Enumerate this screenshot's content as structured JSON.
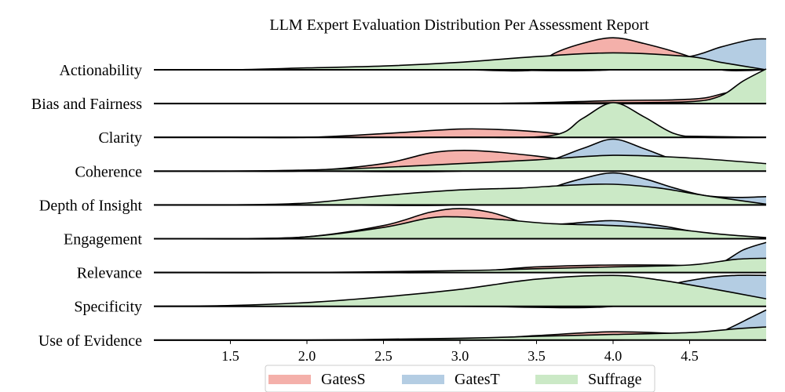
{
  "chart_data": {
    "type": "area",
    "title": "LLM Expert Evaluation Distribution Per Assessment Report",
    "xlabel": "",
    "ylabel": "",
    "xlim": [
      1.0,
      5.0
    ],
    "x_ticks": [
      1.5,
      2.0,
      2.5,
      3.0,
      3.5,
      4.0,
      4.5
    ],
    "x_tick_labels": [
      "1.5",
      "2.0",
      "2.5",
      "3.0",
      "3.5",
      "4.0",
      "4.5"
    ],
    "categories": [
      "Actionability",
      "Bias and Fairness",
      "Clarity",
      "Coherence",
      "Depth of Insight",
      "Engagement",
      "Relevance",
      "Specificity",
      "Use of Evidence"
    ],
    "legend_position": "bottom-center",
    "series": [
      {
        "name": "GatesS",
        "color": "#f4b0aa",
        "curves": [
          [
            [
              1.0,
              0.0
            ],
            [
              1.5,
              0.0
            ],
            [
              2.0,
              0.0
            ],
            [
              2.5,
              0.0
            ],
            [
              3.0,
              0.0
            ],
            [
              3.5,
              0.0
            ],
            [
              3.6,
              0.4
            ],
            [
              3.8,
              0.7
            ],
            [
              4.0,
              0.85
            ],
            [
              4.2,
              0.7
            ],
            [
              4.5,
              0.35
            ],
            [
              4.7,
              0.0
            ],
            [
              5.0,
              0.0
            ]
          ],
          [
            [
              1.0,
              0.0
            ],
            [
              2.0,
              0.0
            ],
            [
              3.0,
              0.0
            ],
            [
              3.5,
              0.02
            ],
            [
              4.0,
              0.08
            ],
            [
              4.4,
              0.1
            ],
            [
              4.6,
              0.15
            ],
            [
              4.8,
              0.3
            ],
            [
              5.0,
              0.0
            ]
          ],
          [
            [
              1.0,
              0.0
            ],
            [
              1.5,
              0.0
            ],
            [
              2.0,
              0.0
            ],
            [
              2.5,
              0.1
            ],
            [
              3.0,
              0.22
            ],
            [
              3.3,
              0.2
            ],
            [
              3.5,
              0.15
            ],
            [
              3.7,
              0.08
            ],
            [
              4.0,
              0.05
            ],
            [
              4.5,
              0.03
            ],
            [
              5.0,
              0.0
            ]
          ],
          [
            [
              1.0,
              0.0
            ],
            [
              1.5,
              0.0
            ],
            [
              2.0,
              0.01
            ],
            [
              2.5,
              0.2
            ],
            [
              2.8,
              0.48
            ],
            [
              3.0,
              0.55
            ],
            [
              3.2,
              0.52
            ],
            [
              3.5,
              0.4
            ],
            [
              3.7,
              0.3
            ],
            [
              4.0,
              0.2
            ],
            [
              4.5,
              0.08
            ],
            [
              5.0,
              0.0
            ]
          ],
          [
            [
              1.0,
              0.0
            ],
            [
              2.0,
              0.0
            ],
            [
              3.0,
              0.0
            ],
            [
              3.5,
              0.0
            ],
            [
              4.0,
              0.0
            ],
            [
              5.0,
              0.0
            ]
          ],
          [
            [
              1.0,
              0.0
            ],
            [
              1.5,
              0.0
            ],
            [
              2.0,
              0.05
            ],
            [
              2.5,
              0.35
            ],
            [
              2.8,
              0.7
            ],
            [
              3.0,
              0.8
            ],
            [
              3.2,
              0.7
            ],
            [
              3.4,
              0.45
            ],
            [
              3.6,
              0.25
            ],
            [
              4.0,
              0.12
            ],
            [
              4.5,
              0.05
            ],
            [
              5.0,
              0.0
            ]
          ],
          [
            [
              1.0,
              0.0
            ],
            [
              2.0,
              0.0
            ],
            [
              3.0,
              0.02
            ],
            [
              3.5,
              0.15
            ],
            [
              4.0,
              0.2
            ],
            [
              4.5,
              0.18
            ],
            [
              4.8,
              0.05
            ],
            [
              5.0,
              0.0
            ]
          ],
          [
            [
              1.0,
              0.0
            ],
            [
              2.0,
              0.0
            ],
            [
              3.0,
              0.0
            ],
            [
              4.0,
              0.0
            ],
            [
              5.0,
              0.0
            ]
          ],
          [
            [
              1.0,
              0.0
            ],
            [
              2.0,
              0.0
            ],
            [
              3.0,
              0.02
            ],
            [
              3.5,
              0.12
            ],
            [
              4.0,
              0.22
            ],
            [
              4.5,
              0.15
            ],
            [
              4.7,
              0.05
            ],
            [
              5.0,
              0.0
            ]
          ]
        ]
      },
      {
        "name": "GatesT",
        "color": "#b4cde3",
        "curves": [
          [
            [
              1.0,
              0.0
            ],
            [
              2.0,
              0.0
            ],
            [
              3.0,
              0.0
            ],
            [
              4.0,
              0.0
            ],
            [
              4.5,
              0.35
            ],
            [
              4.7,
              0.6
            ],
            [
              4.9,
              0.8
            ],
            [
              5.0,
              0.82
            ]
          ],
          [
            [
              1.0,
              0.0
            ],
            [
              2.0,
              0.0
            ],
            [
              3.0,
              0.0
            ],
            [
              4.0,
              0.0
            ],
            [
              5.0,
              0.0
            ]
          ],
          [
            [
              1.0,
              0.0
            ],
            [
              2.0,
              0.0
            ],
            [
              3.0,
              0.0
            ],
            [
              4.0,
              0.0
            ],
            [
              5.0,
              0.0
            ]
          ],
          [
            [
              1.0,
              0.0
            ],
            [
              2.0,
              0.0
            ],
            [
              3.0,
              0.0
            ],
            [
              3.5,
              0.2
            ],
            [
              3.8,
              0.6
            ],
            [
              4.0,
              0.85
            ],
            [
              4.2,
              0.6
            ],
            [
              4.4,
              0.3
            ],
            [
              4.6,
              0.1
            ],
            [
              5.0,
              0.02
            ]
          ],
          [
            [
              1.0,
              0.0
            ],
            [
              2.0,
              0.0
            ],
            [
              3.0,
              0.0
            ],
            [
              3.5,
              0.2
            ],
            [
              3.6,
              0.45
            ],
            [
              3.8,
              0.7
            ],
            [
              4.0,
              0.85
            ],
            [
              4.2,
              0.7
            ],
            [
              4.4,
              0.45
            ],
            [
              4.6,
              0.25
            ],
            [
              4.8,
              0.2
            ],
            [
              5.0,
              0.22
            ]
          ],
          [
            [
              1.0,
              0.0
            ],
            [
              2.0,
              0.0
            ],
            [
              3.0,
              0.1
            ],
            [
              3.5,
              0.35
            ],
            [
              3.7,
              0.4
            ],
            [
              4.0,
              0.48
            ],
            [
              4.3,
              0.35
            ],
            [
              4.6,
              0.15
            ],
            [
              5.0,
              0.02
            ]
          ],
          [
            [
              1.0,
              0.0
            ],
            [
              2.0,
              0.0
            ],
            [
              3.0,
              0.0
            ],
            [
              4.0,
              0.05
            ],
            [
              4.5,
              0.1
            ],
            [
              4.7,
              0.25
            ],
            [
              4.85,
              0.6
            ],
            [
              5.0,
              0.8
            ]
          ],
          [
            [
              1.0,
              0.0
            ],
            [
              2.0,
              0.0
            ],
            [
              3.0,
              0.0
            ],
            [
              4.0,
              0.0
            ],
            [
              4.3,
              0.5
            ],
            [
              4.6,
              0.75
            ],
            [
              4.8,
              0.82
            ],
            [
              5.0,
              0.82
            ]
          ],
          [
            [
              1.0,
              0.0
            ],
            [
              2.0,
              0.0
            ],
            [
              3.0,
              0.0
            ],
            [
              4.0,
              0.0
            ],
            [
              4.6,
              0.05
            ],
            [
              4.75,
              0.3
            ],
            [
              4.9,
              0.6
            ],
            [
              5.0,
              0.8
            ]
          ]
        ]
      },
      {
        "name": "Suffrage",
        "color": "#cbe9c6",
        "curves": [
          [
            [
              1.0,
              0.0
            ],
            [
              1.5,
              0.0
            ],
            [
              2.0,
              0.05
            ],
            [
              2.5,
              0.1
            ],
            [
              3.0,
              0.2
            ],
            [
              3.5,
              0.35
            ],
            [
              4.0,
              0.45
            ],
            [
              4.5,
              0.35
            ],
            [
              4.7,
              0.2
            ],
            [
              5.0,
              0.0
            ]
          ],
          [
            [
              1.0,
              0.0
            ],
            [
              3.0,
              0.0
            ],
            [
              4.0,
              0.02
            ],
            [
              4.5,
              0.05
            ],
            [
              4.7,
              0.2
            ],
            [
              4.85,
              0.6
            ],
            [
              5.0,
              0.92
            ]
          ],
          [
            [
              1.0,
              0.0
            ],
            [
              2.0,
              0.0
            ],
            [
              3.0,
              0.0
            ],
            [
              3.6,
              0.05
            ],
            [
              3.8,
              0.5
            ],
            [
              4.0,
              0.92
            ],
            [
              4.2,
              0.55
            ],
            [
              4.4,
              0.1
            ],
            [
              4.6,
              0.0
            ],
            [
              5.0,
              0.0
            ]
          ],
          [
            [
              1.0,
              0.0
            ],
            [
              1.5,
              0.0
            ],
            [
              2.0,
              0.03
            ],
            [
              2.5,
              0.1
            ],
            [
              3.0,
              0.2
            ],
            [
              3.5,
              0.3
            ],
            [
              4.0,
              0.42
            ],
            [
              4.5,
              0.35
            ],
            [
              5.0,
              0.2
            ]
          ],
          [
            [
              1.0,
              0.0
            ],
            [
              1.5,
              0.0
            ],
            [
              2.0,
              0.05
            ],
            [
              2.5,
              0.25
            ],
            [
              3.0,
              0.4
            ],
            [
              3.4,
              0.45
            ],
            [
              3.7,
              0.52
            ],
            [
              4.0,
              0.55
            ],
            [
              4.3,
              0.45
            ],
            [
              4.6,
              0.25
            ],
            [
              5.0,
              0.02
            ]
          ],
          [
            [
              1.0,
              0.0
            ],
            [
              1.5,
              0.0
            ],
            [
              2.0,
              0.05
            ],
            [
              2.5,
              0.3
            ],
            [
              2.8,
              0.55
            ],
            [
              3.0,
              0.58
            ],
            [
              3.3,
              0.5
            ],
            [
              3.6,
              0.4
            ],
            [
              4.0,
              0.35
            ],
            [
              4.4,
              0.25
            ],
            [
              4.7,
              0.12
            ],
            [
              5.0,
              0.03
            ]
          ],
          [
            [
              1.0,
              0.0
            ],
            [
              2.0,
              0.0
            ],
            [
              3.0,
              0.05
            ],
            [
              3.5,
              0.1
            ],
            [
              4.0,
              0.15
            ],
            [
              4.5,
              0.2
            ],
            [
              4.8,
              0.35
            ],
            [
              5.0,
              0.38
            ]
          ],
          [
            [
              1.0,
              0.0
            ],
            [
              1.5,
              0.02
            ],
            [
              2.0,
              0.1
            ],
            [
              2.5,
              0.25
            ],
            [
              3.0,
              0.45
            ],
            [
              3.5,
              0.72
            ],
            [
              4.0,
              0.82
            ],
            [
              4.3,
              0.7
            ],
            [
              4.6,
              0.5
            ],
            [
              5.0,
              0.2
            ]
          ],
          [
            [
              1.0,
              0.0
            ],
            [
              2.0,
              0.0
            ],
            [
              3.0,
              0.05
            ],
            [
              3.5,
              0.1
            ],
            [
              4.0,
              0.15
            ],
            [
              4.5,
              0.2
            ],
            [
              4.8,
              0.3
            ],
            [
              5.0,
              0.35
            ]
          ]
        ]
      }
    ]
  }
}
